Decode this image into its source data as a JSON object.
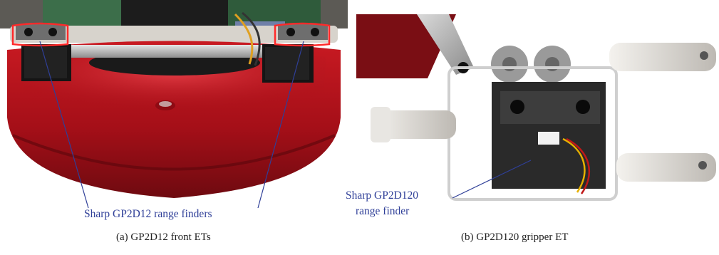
{
  "figure": {
    "panel_a": {
      "annotation": "Sharp GP2D12 range finders",
      "caption": "(a)  GP2D12 front ETs"
    },
    "panel_b": {
      "annotation_line1": "Sharp GP2D120",
      "annotation_line2": "range finder",
      "caption": "(b)  GP2D120 gripper ET"
    }
  },
  "colors": {
    "robot_red": "#b3121b",
    "annotation_blue": "#2f3f98",
    "sensor_highlight": "#ff2a2a"
  }
}
